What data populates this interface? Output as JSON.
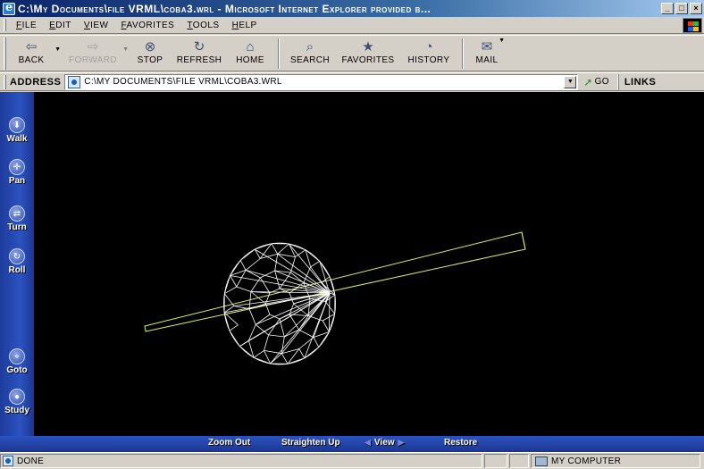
{
  "window": {
    "title": "C:\\My Documents\\file VRML\\coba3.wrl - Microsoft Internet Explorer provided b...",
    "controls": [
      "_",
      "□",
      "×"
    ]
  },
  "menu": {
    "items": [
      "File",
      "Edit",
      "View",
      "Favorites",
      "Tools",
      "Help"
    ]
  },
  "toolbar": {
    "buttons": [
      {
        "label": "Back",
        "icon": "back-arrow-icon",
        "glyph": "⇦",
        "enabled": true
      },
      {
        "label": "Forward",
        "icon": "forward-arrow-icon",
        "glyph": "⇨",
        "enabled": false
      },
      {
        "label": "Stop",
        "icon": "stop-icon",
        "glyph": "⊗",
        "enabled": true
      },
      {
        "label": "Refresh",
        "icon": "refresh-icon",
        "glyph": "↻",
        "enabled": true
      },
      {
        "label": "Home",
        "icon": "home-icon",
        "glyph": "⌂",
        "enabled": true
      },
      {
        "label": "Search",
        "icon": "search-icon",
        "glyph": "⌕",
        "enabled": true
      },
      {
        "label": "Favorites",
        "icon": "favorites-icon",
        "glyph": "★",
        "enabled": true
      },
      {
        "label": "History",
        "icon": "history-icon",
        "glyph": "◔",
        "enabled": true
      },
      {
        "label": "Mail",
        "icon": "mail-icon",
        "glyph": "✉",
        "enabled": true
      }
    ]
  },
  "address": {
    "label": "Address",
    "url": "C:\\My Documents\\file VRML\\coba3.wrl",
    "go_label": "Go",
    "links_label": "Links"
  },
  "viewer": {
    "nav_buttons": [
      {
        "label": "Walk",
        "icon": "walk-icon",
        "glyph": "⬇"
      },
      {
        "label": "Pan",
        "icon": "pan-icon",
        "glyph": "✛"
      },
      {
        "label": "Turn",
        "icon": "turn-icon",
        "glyph": "⇄"
      },
      {
        "label": "Roll",
        "icon": "roll-icon",
        "glyph": "↻"
      },
      {
        "label": "Goto",
        "icon": "goto-icon",
        "glyph": "⌖"
      },
      {
        "label": "Study",
        "icon": "study-icon",
        "glyph": "●"
      }
    ],
    "bottom_controls": {
      "zoom_out": "Zoom Out",
      "straighten_up": "Straighten Up",
      "view": "View",
      "restore": "Restore"
    },
    "colors": {
      "background": "#000000",
      "sphere": "#ffffff",
      "rod": "#d8f05a"
    }
  },
  "status": {
    "text": "Done",
    "zone": "My Computer"
  }
}
